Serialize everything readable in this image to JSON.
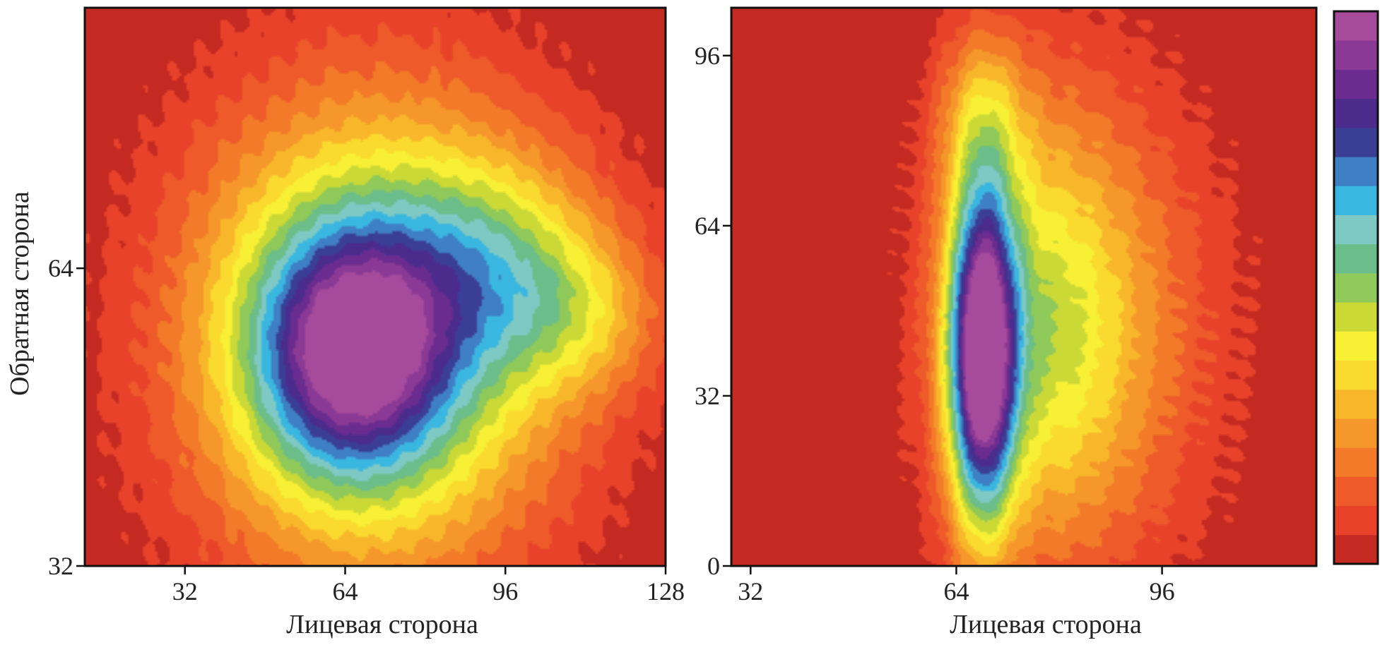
{
  "chart_data": [
    {
      "type": "heatmap",
      "title": "",
      "xlabel": "Лицевая сторона",
      "ylabel": "Обратная сторона",
      "xlim": [
        12,
        128
      ],
      "ylim": [
        32,
        92
      ],
      "x_ticks": [
        "32",
        "64",
        "96",
        "128"
      ],
      "y_ticks": [
        "32",
        "64"
      ],
      "x_tick_values": [
        32,
        64,
        96,
        128
      ],
      "y_tick_values": [
        32,
        64
      ],
      "grid": false,
      "background_level": 0,
      "blobs": [
        {
          "cx": 70,
          "cy": 57,
          "sx": 25,
          "sy": 17,
          "amp": 0.62
        },
        {
          "cx": 65,
          "cy": 55,
          "sx": 13,
          "sy": 9,
          "amp": 0.55
        },
        {
          "cx": 95,
          "cy": 64,
          "sx": 14,
          "sy": 8,
          "amp": 0.25
        },
        {
          "cx": 112,
          "cy": 59,
          "sx": 11,
          "sy": 6,
          "amp": 0.18
        }
      ]
    },
    {
      "type": "heatmap",
      "title": "",
      "xlabel": "Лицевая сторона",
      "ylabel": "",
      "xlim": [
        29,
        120
      ],
      "ylim": [
        0,
        105
      ],
      "x_ticks": [
        "32",
        "64",
        "96"
      ],
      "y_ticks": [
        "0",
        "32",
        "64",
        "96"
      ],
      "x_tick_values": [
        32,
        64,
        96
      ],
      "y_tick_values": [
        0,
        32,
        64,
        96
      ],
      "grid": false,
      "background_level": 0,
      "blobs": [
        {
          "cx": 68,
          "cy": 40,
          "sx": 3.6,
          "sy": 22,
          "amp": 0.95
        },
        {
          "cx": 76,
          "cy": 45,
          "sx": 10,
          "sy": 28,
          "amp": 0.3
        },
        {
          "cx": 86,
          "cy": 45,
          "sx": 14,
          "sy": 32,
          "amp": 0.2
        },
        {
          "cx": 68,
          "cy": 85,
          "sx": 5,
          "sy": 12,
          "amp": 0.2
        }
      ]
    }
  ],
  "colorbar": {
    "colors": [
      "#c42a22",
      "#e8432a",
      "#ee5a2a",
      "#f27a28",
      "#f5972a",
      "#f8b72b",
      "#fada2f",
      "#f7f035",
      "#cbd936",
      "#8ec95a",
      "#6bbd8a",
      "#7ec9c4",
      "#3ab7e0",
      "#3f7fc4",
      "#3a3f95",
      "#4b2c8d",
      "#6a2c8f",
      "#8a3a95",
      "#a64a9c"
    ]
  }
}
